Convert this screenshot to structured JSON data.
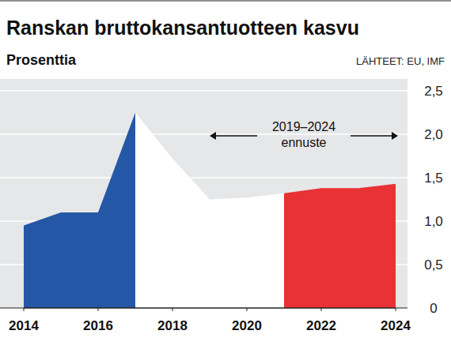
{
  "chart_data": {
    "type": "area",
    "title": "Ranskan bruttokansantuotteen kasvu",
    "subtitle": "Prosenttia",
    "source": "LÄHTEET: EU, IMF",
    "annotation": "2019–2024 ennuste",
    "x": [
      2014,
      2015,
      2016,
      2017,
      2018,
      2019,
      2020,
      2021,
      2022,
      2023,
      2024
    ],
    "series": [
      {
        "color": "#2458a6",
        "values": [
          0.95,
          1.1,
          1.1,
          2.25,
          null,
          null,
          null,
          null,
          null,
          null,
          null
        ]
      },
      {
        "color": "#ffffff",
        "values": [
          null,
          null,
          null,
          2.25,
          1.72,
          1.25,
          1.27,
          1.32,
          null,
          null,
          null
        ]
      },
      {
        "color": "#e83234",
        "values": [
          null,
          null,
          null,
          null,
          null,
          null,
          null,
          1.32,
          1.38,
          1.38,
          1.43
        ]
      }
    ],
    "xlim": [
      2014,
      2024
    ],
    "ylim": [
      0,
      2.5
    ],
    "xticks": [
      2014,
      2016,
      2018,
      2020,
      2022,
      2024
    ],
    "yticks": [
      0,
      {
        "value": 0.5,
        "label": "0,5"
      },
      {
        "value": 1,
        "label": "1,0"
      },
      {
        "value": 1.5,
        "label": "1,5"
      },
      {
        "value": 2,
        "label": "2,0"
      },
      {
        "value": 2.5,
        "label": "2,5"
      }
    ],
    "grid": true
  }
}
